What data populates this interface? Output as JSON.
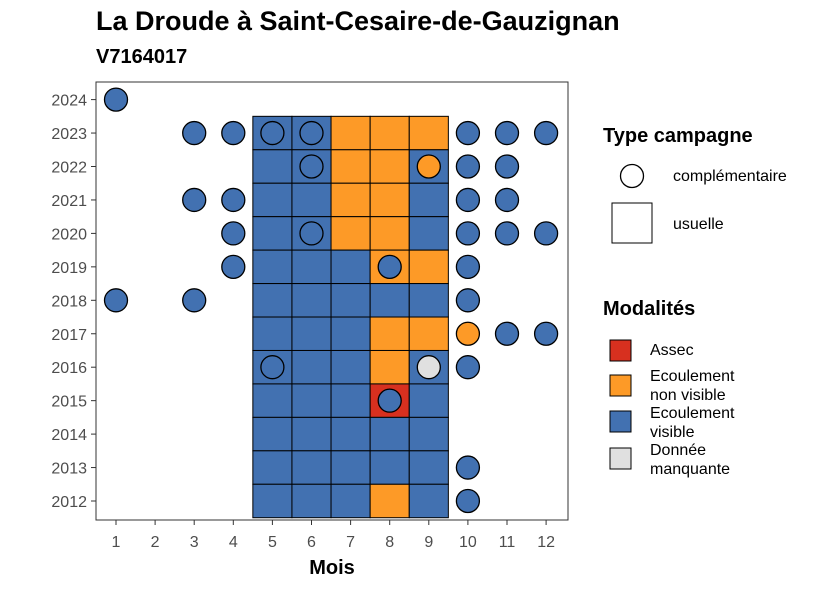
{
  "chart_data": {
    "type": "heatmap",
    "title": "La Droude à Saint-Cesaire-de-Gauzignan",
    "subtitle": "V7164017",
    "xlabel": "Mois",
    "ylabel": "",
    "x_ticks": [
      "1",
      "2",
      "3",
      "4",
      "5",
      "6",
      "7",
      "8",
      "9",
      "10",
      "11",
      "12"
    ],
    "y_ticks": [
      "2012",
      "2013",
      "2014",
      "2015",
      "2016",
      "2017",
      "2018",
      "2019",
      "2020",
      "2021",
      "2022",
      "2023",
      "2024"
    ],
    "grid": false,
    "legend": {
      "placement": "right",
      "shape_title": "Type campagne",
      "shapes": [
        {
          "key": "complementaire",
          "label": "complémentaire"
        },
        {
          "key": "usuelle",
          "label": "usuelle"
        }
      ],
      "modalite_title": "Modalités",
      "modalites": [
        {
          "key": "assec",
          "label": "Assec",
          "color": "#d7301f"
        },
        {
          "key": "non_visible",
          "label": "Ecoulement\nnon visible",
          "color": "#fd9a27"
        },
        {
          "key": "visible",
          "label": "Ecoulement\nvisible",
          "color": "#4271b1"
        },
        {
          "key": "manquante",
          "label": "Donnée\nmanquante",
          "color": "#e0e0e0"
        }
      ]
    },
    "usuelle": [
      {
        "year": 2023,
        "months": [
          "V",
          "V",
          "N",
          "N",
          "N"
        ]
      },
      {
        "year": 2022,
        "months": [
          "V",
          "V",
          "N",
          "N",
          "V"
        ]
      },
      {
        "year": 2021,
        "months": [
          "V",
          "V",
          "N",
          "N",
          "V"
        ]
      },
      {
        "year": 2020,
        "months": [
          "V",
          "V",
          "N",
          "N",
          "V"
        ]
      },
      {
        "year": 2019,
        "months": [
          "V",
          "V",
          "V",
          "N",
          "N"
        ]
      },
      {
        "year": 2018,
        "months": [
          "V",
          "V",
          "V",
          "V",
          "V"
        ]
      },
      {
        "year": 2017,
        "months": [
          "V",
          "V",
          "V",
          "N",
          "N"
        ]
      },
      {
        "year": 2016,
        "months": [
          "V",
          "V",
          "V",
          "N",
          "V"
        ]
      },
      {
        "year": 2015,
        "months": [
          "V",
          "V",
          "V",
          "A",
          "V"
        ]
      },
      {
        "year": 2014,
        "months": [
          "V",
          "V",
          "V",
          "V",
          "V"
        ]
      },
      {
        "year": 2013,
        "months": [
          "V",
          "V",
          "V",
          "V",
          "V"
        ]
      },
      {
        "year": 2012,
        "months": [
          "V",
          "V",
          "V",
          "N",
          "V"
        ]
      }
    ],
    "usuelle_month_start": 5,
    "complementaire": [
      {
        "year": 2024,
        "month": 1,
        "m": "V"
      },
      {
        "year": 2023,
        "month": 3,
        "m": "V"
      },
      {
        "year": 2023,
        "month": 4,
        "m": "V"
      },
      {
        "year": 2023,
        "month": 5,
        "m": "V"
      },
      {
        "year": 2023,
        "month": 6,
        "m": "V"
      },
      {
        "year": 2023,
        "month": 10,
        "m": "V"
      },
      {
        "year": 2023,
        "month": 11,
        "m": "V"
      },
      {
        "year": 2023,
        "month": 12,
        "m": "V"
      },
      {
        "year": 2022,
        "month": 6,
        "m": "V"
      },
      {
        "year": 2022,
        "month": 9,
        "m": "N"
      },
      {
        "year": 2022,
        "month": 10,
        "m": "V"
      },
      {
        "year": 2022,
        "month": 11,
        "m": "V"
      },
      {
        "year": 2021,
        "month": 3,
        "m": "V"
      },
      {
        "year": 2021,
        "month": 4,
        "m": "V"
      },
      {
        "year": 2021,
        "month": 10,
        "m": "V"
      },
      {
        "year": 2021,
        "month": 11,
        "m": "V"
      },
      {
        "year": 2020,
        "month": 4,
        "m": "V"
      },
      {
        "year": 2020,
        "month": 6,
        "m": "V"
      },
      {
        "year": 2020,
        "month": 10,
        "m": "V"
      },
      {
        "year": 2020,
        "month": 11,
        "m": "V"
      },
      {
        "year": 2020,
        "month": 12,
        "m": "V"
      },
      {
        "year": 2019,
        "month": 4,
        "m": "V"
      },
      {
        "year": 2019,
        "month": 8,
        "m": "V"
      },
      {
        "year": 2019,
        "month": 10,
        "m": "V"
      },
      {
        "year": 2018,
        "month": 1,
        "m": "V"
      },
      {
        "year": 2018,
        "month": 3,
        "m": "V"
      },
      {
        "year": 2018,
        "month": 10,
        "m": "V"
      },
      {
        "year": 2017,
        "month": 10,
        "m": "N"
      },
      {
        "year": 2017,
        "month": 11,
        "m": "V"
      },
      {
        "year": 2017,
        "month": 12,
        "m": "V"
      },
      {
        "year": 2016,
        "month": 5,
        "m": "V"
      },
      {
        "year": 2016,
        "month": 9,
        "m": "M"
      },
      {
        "year": 2016,
        "month": 10,
        "m": "V"
      },
      {
        "year": 2015,
        "month": 8,
        "m": "V"
      },
      {
        "year": 2013,
        "month": 10,
        "m": "V"
      },
      {
        "year": 2012,
        "month": 10,
        "m": "V"
      }
    ],
    "modalite_codes": {
      "V": "visible",
      "N": "non_visible",
      "A": "assec",
      "M": "manquante"
    }
  }
}
